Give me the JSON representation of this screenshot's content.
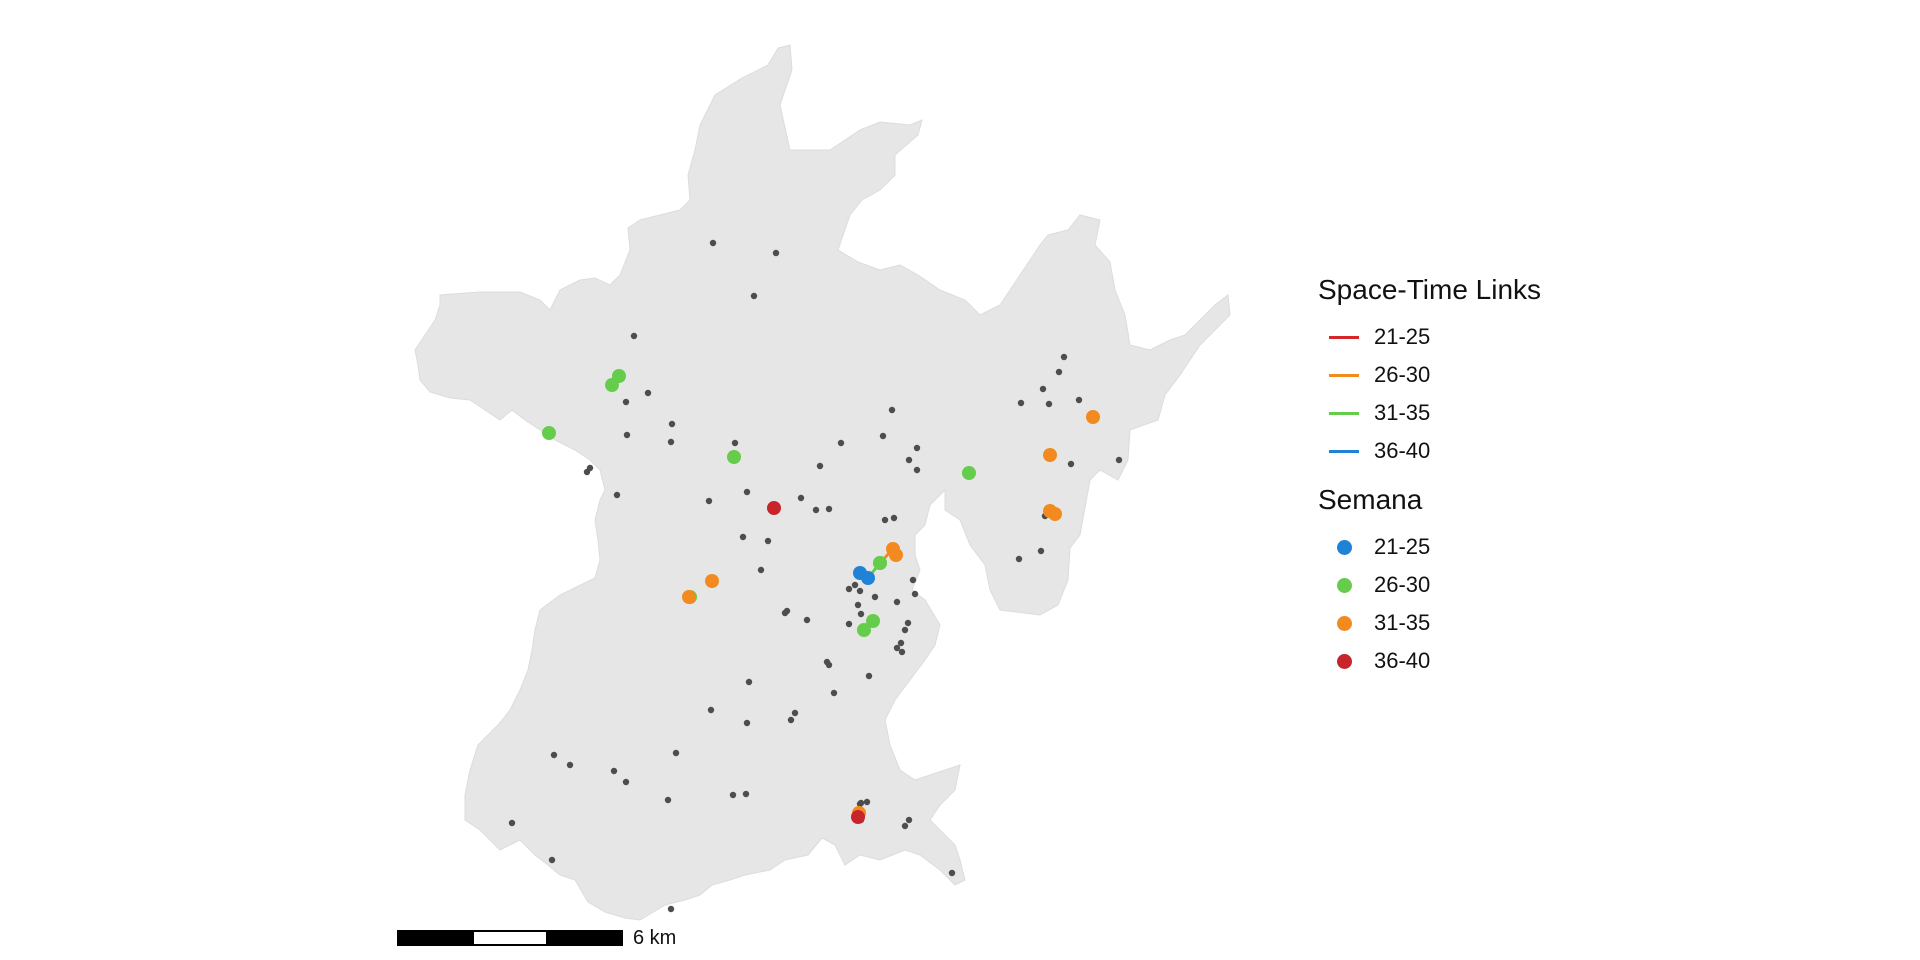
{
  "legend": {
    "links_title": "Space-Time Links",
    "links": [
      {
        "label": "21-25",
        "color": "#D62728"
      },
      {
        "label": "26-30",
        "color": "#F28A1F"
      },
      {
        "label": "31-35",
        "color": "#66CC4C"
      },
      {
        "label": "36-40",
        "color": "#1E83D6"
      }
    ],
    "semana_title": "Semana",
    "semana": [
      {
        "label": "21-25",
        "color": "#1E83D6"
      },
      {
        "label": "26-30",
        "color": "#66CC4C"
      },
      {
        "label": "31-35",
        "color": "#F28A1F"
      },
      {
        "label": "36-40",
        "color": "#C8242B"
      }
    ]
  },
  "scalebar": {
    "label": "6 km"
  },
  "map": {
    "region_fill": "#E6E6E6",
    "background_point_color": "#4D4D4D"
  }
}
